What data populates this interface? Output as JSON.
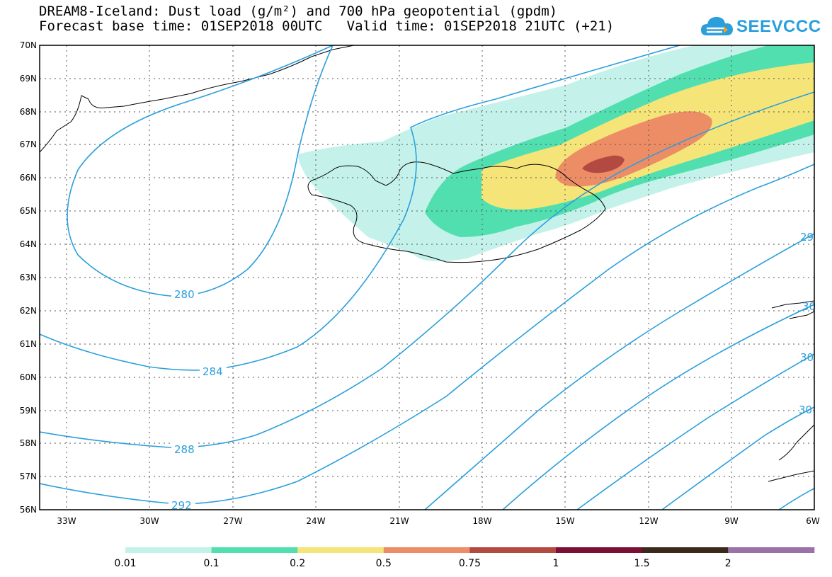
{
  "header": {
    "line1": "DREAM8-Iceland: Dust load (g/m²) and 700 hPa geopotential (gpdm)",
    "line2": "Forecast base time: 01SEP2018 00UTC   Valid time: 01SEP2018 21UTC (+21)"
  },
  "logo": {
    "text": "SEEVCCC",
    "color": "#2a9fdc"
  },
  "map": {
    "lat_labels": [
      "70N",
      "69N",
      "68N",
      "67N",
      "66N",
      "65N",
      "64N",
      "63N",
      "62N",
      "61N",
      "60N",
      "59N",
      "58N",
      "57N",
      "56N"
    ],
    "lon_labels": [
      "33W",
      "30W",
      "27W",
      "24W",
      "21W",
      "18W",
      "15W",
      "12W",
      "9W",
      "6W"
    ],
    "contour_color": "#2a9fdc",
    "coast_color": "#000000",
    "contour_labels": [
      {
        "text": "280",
        "key": "c280"
      },
      {
        "text": "284",
        "key": "c284"
      },
      {
        "text": "288",
        "key": "c288"
      },
      {
        "text": "292",
        "key": "c292"
      },
      {
        "text": "29",
        "key": "c29e"
      },
      {
        "text": "30",
        "key": "c30a"
      },
      {
        "text": "30",
        "key": "c30b"
      },
      {
        "text": "30",
        "key": "c30c"
      }
    ]
  },
  "colorbar": {
    "labels": [
      "0.01",
      "0.1",
      "0.2",
      "0.5",
      "0.75",
      "1",
      "1.5",
      "2"
    ],
    "colors": [
      "#c4f2ea",
      "#52dfb0",
      "#f5e579",
      "#ed8d66",
      "#b24a41",
      "#7c0f33",
      "#3b2a1b",
      "#9a72a8"
    ]
  }
}
